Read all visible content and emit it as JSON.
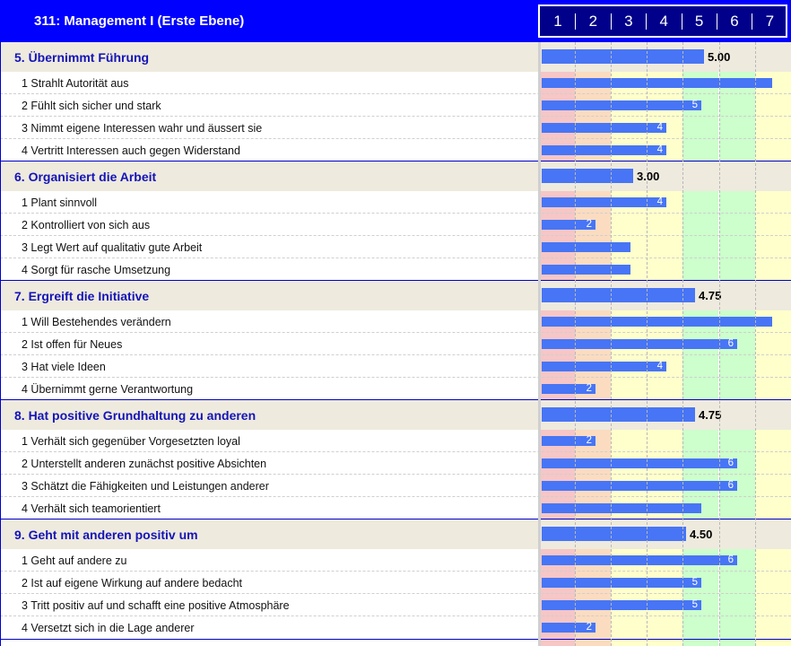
{
  "header": {
    "title": "311: Management I (Erste Ebene)",
    "scale": [
      "1",
      "2",
      "3",
      "4",
      "5",
      "6",
      "7"
    ]
  },
  "colors": {
    "header_bg": "#0000ff",
    "bar": "#4775f5",
    "section_title": "#1414b8",
    "zones": [
      "#f7c6c6",
      "#fbdcc0",
      "#ffffcc",
      "#ffffcc",
      "#ccffcc",
      "#ccffcc",
      "#ffffcc"
    ]
  },
  "chart_data": {
    "type": "bar",
    "orientation": "horizontal",
    "xlim": [
      1,
      7
    ],
    "grid": true,
    "sections": [
      {
        "title": "5. Übernimmt Führung",
        "score": 5.0,
        "score_label": "5.00",
        "items": [
          {
            "label": "1 Strahlt Autorität aus",
            "value": 7,
            "value_label": ""
          },
          {
            "label": "2 Fühlt sich sicher und stark",
            "value": 5,
            "value_label": "5"
          },
          {
            "label": "3 Nimmt eigene Interessen wahr und äussert sie",
            "value": 4,
            "value_label": "4"
          },
          {
            "label": "4 Vertritt Interessen auch gegen Widerstand",
            "value": 4,
            "value_label": "4"
          }
        ]
      },
      {
        "title": "6. Organisiert die Arbeit",
        "score": 3.0,
        "score_label": "3.00",
        "items": [
          {
            "label": "1 Plant sinnvoll",
            "value": 4,
            "value_label": "4"
          },
          {
            "label": "2 Kontrolliert von sich aus",
            "value": 2,
            "value_label": "2"
          },
          {
            "label": "3 Legt Wert auf qualitativ gute Arbeit",
            "value": 3,
            "value_label": ""
          },
          {
            "label": "4 Sorgt für rasche Umsetzung",
            "value": 3,
            "value_label": ""
          }
        ]
      },
      {
        "title": "7. Ergreift die Initiative",
        "score": 4.75,
        "score_label": "4.75",
        "items": [
          {
            "label": "1 Will Bestehendes verändern",
            "value": 7,
            "value_label": ""
          },
          {
            "label": "2 Ist offen für Neues",
            "value": 6,
            "value_label": "6"
          },
          {
            "label": "3 Hat viele Ideen",
            "value": 4,
            "value_label": "4"
          },
          {
            "label": "4 Übernimmt gerne Verantwortung",
            "value": 2,
            "value_label": "2"
          }
        ]
      },
      {
        "title": "8. Hat positive Grundhaltung zu anderen",
        "score": 4.75,
        "score_label": "4.75",
        "items": [
          {
            "label": "1 Verhält sich gegenüber Vorgesetzten loyal",
            "value": 2,
            "value_label": "2"
          },
          {
            "label": "2 Unterstellt anderen zunächst positive Absichten",
            "value": 6,
            "value_label": "6"
          },
          {
            "label": "3 Schätzt die Fähigkeiten und Leistungen anderer",
            "value": 6,
            "value_label": "6"
          },
          {
            "label": "4 Verhält sich teamorientiert",
            "value": 5,
            "value_label": ""
          }
        ]
      },
      {
        "title": "9. Geht mit anderen positiv um",
        "score": 4.5,
        "score_label": "4.50",
        "items": [
          {
            "label": "1 Geht auf andere zu",
            "value": 6,
            "value_label": "6"
          },
          {
            "label": "2 Ist auf eigene Wirkung auf andere bedacht",
            "value": 5,
            "value_label": "5"
          },
          {
            "label": "3 Tritt positiv auf und schafft eine positive Atmosphäre",
            "value": 5,
            "value_label": "5"
          },
          {
            "label": "4 Versetzt sich in die Lage anderer",
            "value": 2,
            "value_label": "2"
          }
        ]
      }
    ]
  }
}
